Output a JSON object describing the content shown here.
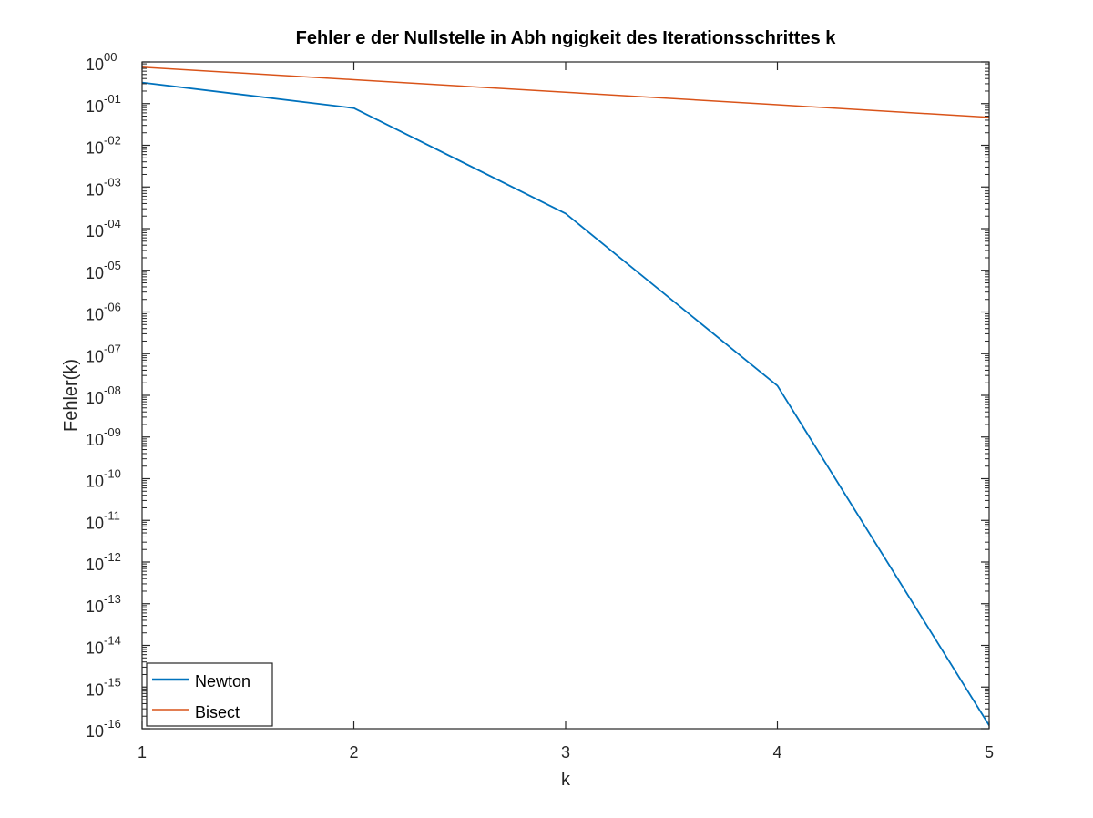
{
  "chart_data": {
    "type": "line",
    "title": "Fehler e der Nullstelle in Abh ngigkeit des Iterationsschrittes k",
    "xlabel": "k",
    "ylabel": "Fehler(k)",
    "x": [
      1,
      2,
      3,
      4,
      5
    ],
    "xlim": [
      1,
      5
    ],
    "xticks": [
      "1",
      "2",
      "3",
      "4",
      "5"
    ],
    "yscale": "log",
    "ylim_exponent": [
      -16,
      0
    ],
    "yticks": [
      {
        "base": "10",
        "exp": "00",
        "value": 0
      },
      {
        "base": "10",
        "exp": "-01",
        "value": -1
      },
      {
        "base": "10",
        "exp": "-02",
        "value": -2
      },
      {
        "base": "10",
        "exp": "-03",
        "value": -3
      },
      {
        "base": "10",
        "exp": "-04",
        "value": -4
      },
      {
        "base": "10",
        "exp": "-05",
        "value": -5
      },
      {
        "base": "10",
        "exp": "-06",
        "value": -6
      },
      {
        "base": "10",
        "exp": "-07",
        "value": -7
      },
      {
        "base": "10",
        "exp": "-08",
        "value": -8
      },
      {
        "base": "10",
        "exp": "-09",
        "value": -9
      },
      {
        "base": "10",
        "exp": "-10",
        "value": -10
      },
      {
        "base": "10",
        "exp": "-11",
        "value": -11
      },
      {
        "base": "10",
        "exp": "-12",
        "value": -12
      },
      {
        "base": "10",
        "exp": "-13",
        "value": -13
      },
      {
        "base": "10",
        "exp": "-14",
        "value": -14
      },
      {
        "base": "10",
        "exp": "-15",
        "value": -15
      },
      {
        "base": "10",
        "exp": "-16",
        "value": -16
      }
    ],
    "series": [
      {
        "name": "Newton",
        "color": "#0072BD",
        "values": [
          0.32,
          0.078,
          0.00023,
          1.7e-08,
          1.2e-16
        ]
      },
      {
        "name": "Bisect",
        "color": "#D95319",
        "values": [
          0.75,
          0.375,
          0.1875,
          0.09375,
          0.046875
        ]
      }
    ],
    "grid": false,
    "legend_position": "bottom-left"
  }
}
